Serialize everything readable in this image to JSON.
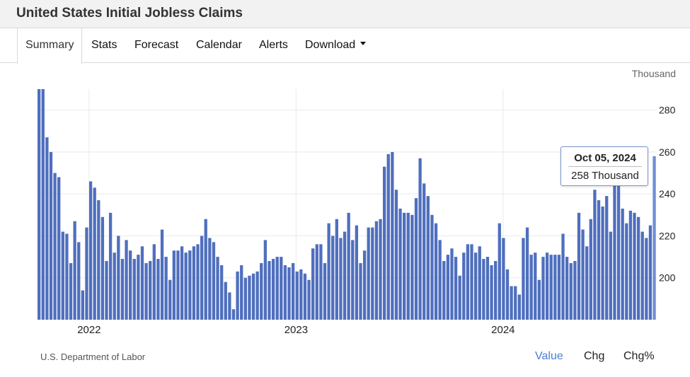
{
  "title": "United States Initial Jobless Claims",
  "tabs": [
    {
      "label": "Summary",
      "active": true
    },
    {
      "label": "Stats"
    },
    {
      "label": "Forecast"
    },
    {
      "label": "Calendar"
    },
    {
      "label": "Alerts"
    },
    {
      "label": "Download",
      "dropdown": true
    }
  ],
  "unit": "Thousand",
  "source": "U.S. Department of Labor",
  "view_toggle": [
    "Value",
    "Chg",
    "Chg%"
  ],
  "active_view": "Value",
  "colors": {
    "bar": "#4f6fbe",
    "accent": "#4a7fd0",
    "grid": "#e9e9e9"
  },
  "tooltip": {
    "date": "Oct 05, 2024",
    "value": "258 Thousand"
  },
  "chart_data": {
    "type": "bar",
    "frequency": "weekly",
    "start_date": "2021-10-02",
    "end_date": "2024-10-05",
    "ylim": [
      180,
      290
    ],
    "yticks": [
      200,
      220,
      240,
      260,
      280
    ],
    "xticks": [
      "2022",
      "2023",
      "2024"
    ],
    "grid": true,
    "legend": "none",
    "highlight_last": true,
    "values": [
      290,
      290,
      267,
      260,
      250,
      248,
      222,
      221,
      207,
      227,
      217,
      194,
      224,
      246,
      243,
      237,
      229,
      208,
      231,
      212,
      220,
      209,
      218,
      213,
      209,
      211,
      215,
      207,
      208,
      216,
      209,
      223,
      210,
      199,
      213,
      213,
      215,
      212,
      213,
      215,
      216,
      220,
      228,
      219,
      217,
      210,
      206,
      198,
      193,
      185,
      203,
      206,
      200,
      201,
      202,
      203,
      207,
      218,
      208,
      209,
      210,
      210,
      206,
      205,
      207,
      203,
      204,
      202,
      199,
      214,
      216,
      216,
      207,
      226,
      220,
      228,
      219,
      222,
      231,
      218,
      225,
      207,
      213,
      224,
      224,
      227,
      228,
      253,
      259,
      260,
      242,
      233,
      231,
      231,
      230,
      238,
      257,
      245,
      239,
      230,
      226,
      218,
      208,
      211,
      214,
      210,
      201,
      212,
      216,
      216,
      212,
      215,
      209,
      210,
      206,
      208,
      226,
      219,
      204,
      196,
      196,
      192,
      219,
      224,
      211,
      212,
      199,
      210,
      212,
      211,
      211,
      211,
      221,
      210,
      207,
      208,
      231,
      223,
      215,
      228,
      242,
      237,
      234,
      239,
      222,
      244,
      246,
      233,
      226,
      232,
      231,
      229,
      222,
      219,
      225,
      258
    ]
  }
}
